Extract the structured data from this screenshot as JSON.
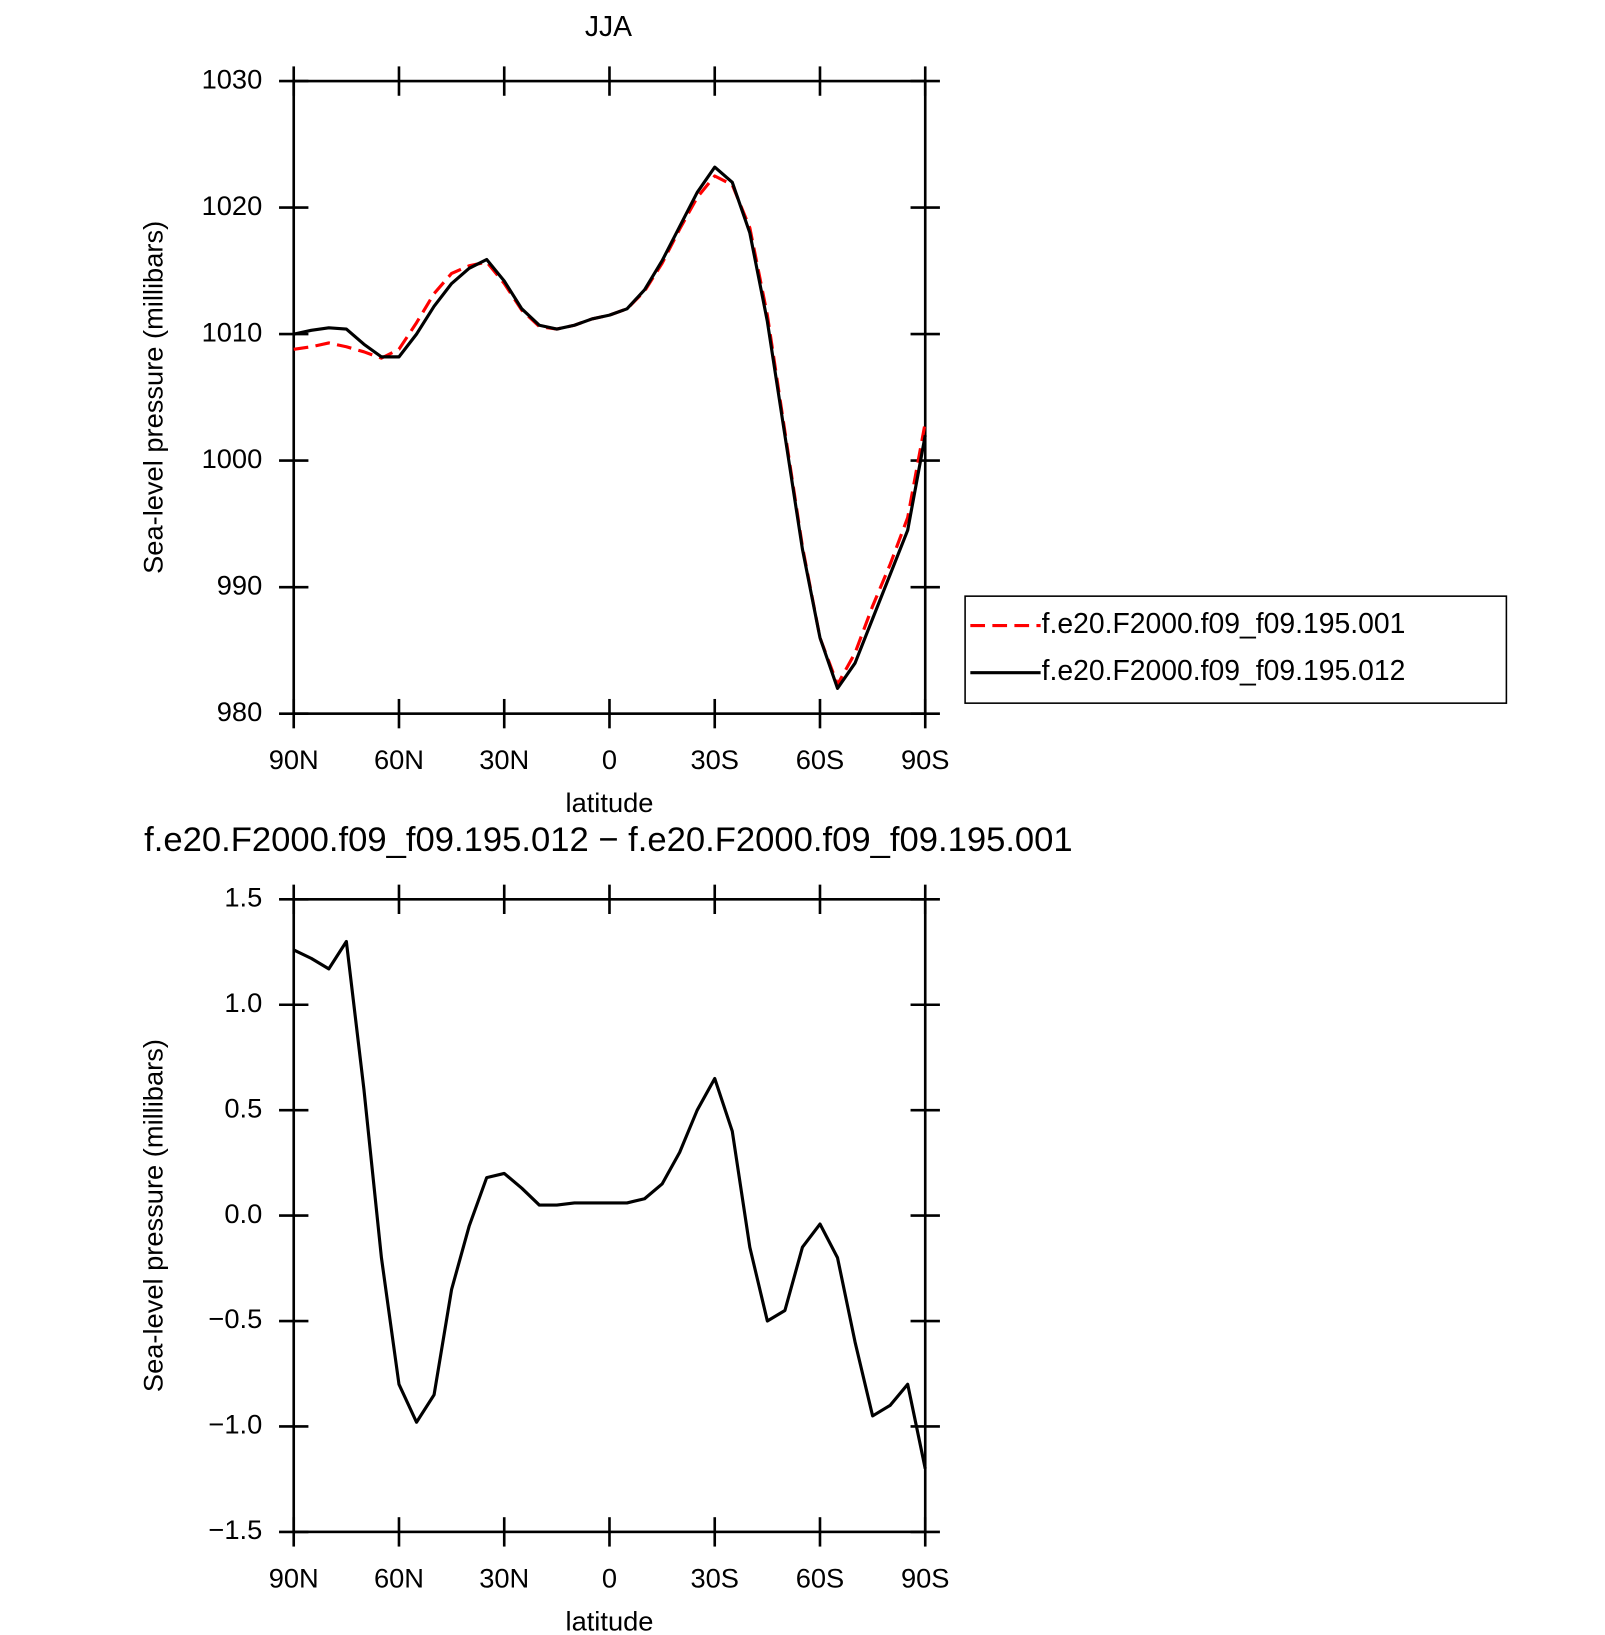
{
  "chart_data": [
    {
      "type": "line",
      "title": "JJA",
      "xlabel": "latitude",
      "ylabel": "Sea-level pressure (millibars)",
      "x": [
        90,
        85,
        80,
        75,
        70,
        65,
        60,
        55,
        50,
        45,
        40,
        35,
        30,
        25,
        20,
        15,
        10,
        5,
        0,
        -5,
        -10,
        -15,
        -20,
        -25,
        -30,
        -35,
        -40,
        -45,
        -50,
        -55,
        -60,
        -65,
        -70,
        -75,
        -80,
        -85,
        -90
      ],
      "xlim": [
        90,
        -90
      ],
      "xticks": [
        {
          "value": 90,
          "label": "90N"
        },
        {
          "value": 60,
          "label": "60N"
        },
        {
          "value": 30,
          "label": "30N"
        },
        0,
        {
          "value": -30,
          "label": "30S"
        },
        {
          "value": -60,
          "label": "60S"
        },
        {
          "value": -90,
          "label": "90S"
        }
      ],
      "ylim": [
        980,
        1030
      ],
      "yticks": [
        980,
        990,
        1000,
        1010,
        1020,
        1030
      ],
      "legend": "outside-right",
      "series": [
        {
          "name": "f.e20.F2000.f09_f09.195.001",
          "color": "#ff0000",
          "dash": true,
          "values": [
            1008.8,
            1009.0,
            1009.3,
            1009.0,
            1008.6,
            1008.1,
            1008.8,
            1010.9,
            1013.2,
            1014.8,
            1015.4,
            1015.7,
            1014.0,
            1011.9,
            1010.6,
            1010.4,
            1010.7,
            1011.2,
            1011.5,
            1012.0,
            1013.4,
            1015.6,
            1018.3,
            1020.8,
            1022.5,
            1021.8,
            1018.4,
            1011.5,
            1002.3,
            993.2,
            986.0,
            982.3,
            984.8,
            988.5,
            991.8,
            995.5,
            1003.0
          ]
        },
        {
          "name": "f.e20.F2000.f09_f09.195.012",
          "color": "#000000",
          "dash": false,
          "values": [
            1010.0,
            1010.3,
            1010.5,
            1010.4,
            1009.2,
            1008.2,
            1008.2,
            1010.0,
            1012.2,
            1014.0,
            1015.2,
            1015.9,
            1014.2,
            1012.0,
            1010.7,
            1010.4,
            1010.7,
            1011.2,
            1011.5,
            1012.0,
            1013.5,
            1015.8,
            1018.5,
            1021.2,
            1023.2,
            1022.0,
            1018.0,
            1011.0,
            1002.0,
            993.0,
            986.0,
            982.0,
            984.0,
            987.5,
            991.0,
            994.5,
            1002.0
          ]
        }
      ]
    },
    {
      "type": "line",
      "title": "f.e20.F2000.f09_f09.195.012 − f.e20.F2000.f09_f09.195.001",
      "xlabel": "latitude",
      "ylabel": "Sea-level pressure (millibars)",
      "x": [
        90,
        85,
        80,
        75,
        70,
        65,
        60,
        55,
        50,
        45,
        40,
        35,
        30,
        25,
        20,
        15,
        10,
        5,
        0,
        -5,
        -10,
        -15,
        -20,
        -25,
        -30,
        -35,
        -40,
        -45,
        -50,
        -55,
        -60,
        -65,
        -70,
        -75,
        -80,
        -85,
        -90
      ],
      "xlim": [
        90,
        -90
      ],
      "xticks": [
        {
          "value": 90,
          "label": "90N"
        },
        {
          "value": 60,
          "label": "60N"
        },
        {
          "value": 30,
          "label": "30N"
        },
        0,
        {
          "value": -30,
          "label": "30S"
        },
        {
          "value": -60,
          "label": "60S"
        },
        {
          "value": -90,
          "label": "90S"
        }
      ],
      "ylim": [
        -1.5,
        1.5
      ],
      "yticks": [
        {
          "value": -1.5,
          "label": "−1.5"
        },
        {
          "value": -1.0,
          "label": "−1.0"
        },
        {
          "value": -0.5,
          "label": "−0.5"
        },
        {
          "value": 0,
          "label": "0.0"
        },
        0.5,
        {
          "value": 1.0,
          "label": "1.0"
        },
        1.5
      ],
      "series": [
        {
          "color": "#000000",
          "dash": false,
          "values": [
            1.26,
            1.22,
            1.17,
            1.3,
            0.6,
            -0.2,
            -0.8,
            -0.98,
            -0.85,
            -0.35,
            -0.05,
            0.18,
            0.2,
            0.13,
            0.05,
            0.05,
            0.06,
            0.06,
            0.06,
            0.06,
            0.08,
            0.15,
            0.3,
            0.5,
            0.65,
            0.4,
            -0.15,
            -0.5,
            -0.45,
            -0.15,
            -0.04,
            -0.2,
            -0.6,
            -0.95,
            -0.9,
            -0.8,
            -1.2
          ]
        }
      ]
    }
  ]
}
